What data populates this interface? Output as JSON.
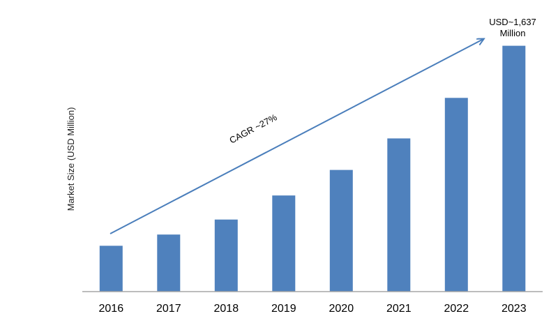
{
  "chart_data": {
    "type": "bar",
    "categories": [
      "2016",
      "2017",
      "2018",
      "2019",
      "2020",
      "2021",
      "2022",
      "2023"
    ],
    "values": [
      305,
      380,
      480,
      640,
      810,
      1020,
      1290,
      1637
    ],
    "xlabel": "",
    "ylabel": "Market Size (USD Million)",
    "ylim": [
      0,
      1700
    ],
    "grid": false,
    "legend": "none",
    "annotations": {
      "cagr": "CAGR ~27%",
      "last_value_line1": "USD~1,637",
      "last_value_line2": "Million"
    },
    "colors": {
      "bar": "#4f81bd",
      "arrow": "#4a7ebb",
      "axis": "#a6a6a6"
    }
  }
}
